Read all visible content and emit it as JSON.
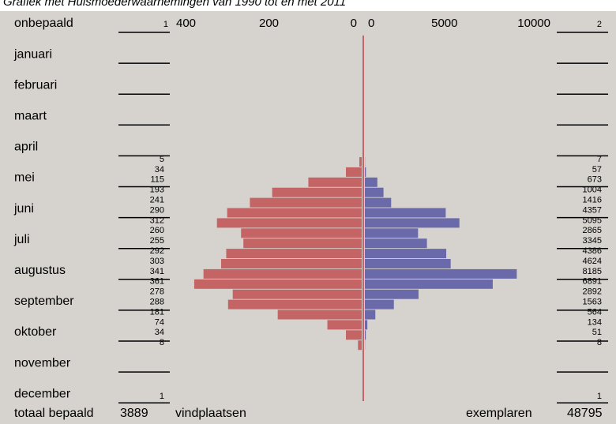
{
  "chart_data": {
    "type": "butterfly",
    "title": "Grafiek met Huismoederwaarnemingen van 1990 tot en met 2011",
    "rows": [
      "onbepaald",
      "januari",
      "februari",
      "maart",
      "april",
      "mei",
      "juni",
      "juli",
      "augustus",
      "september",
      "oktober",
      "november",
      "december"
    ],
    "unknown_counts": [
      1,
      2
    ],
    "end_counts": [
      1,
      1
    ],
    "xlim": [
      0,
      400
    ],
    "xticks": [
      400,
      200,
      0
    ],
    "x2lim": [
      0,
      10000
    ],
    "x2ticks": [
      0,
      5000,
      10000
    ],
    "series": [
      {
        "name": "vindplaatsen",
        "color": "#c46464",
        "values": [
          5,
          34,
          115,
          193,
          241,
          290,
          312,
          260,
          255,
          292,
          303,
          341,
          361,
          278,
          288,
          181,
          74,
          34,
          8
        ]
      },
      {
        "name": "exemplaren",
        "color": "#6a6aaa",
        "values": [
          7,
          57,
          673,
          1004,
          1416,
          4357,
          5095,
          2865,
          3345,
          4386,
          4624,
          8185,
          6891,
          2892,
          1563,
          564,
          134,
          51,
          8
        ]
      }
    ],
    "footer": {
      "label": "totaal bepaald",
      "total_sites": 3889,
      "total_specimens": 48795
    }
  }
}
